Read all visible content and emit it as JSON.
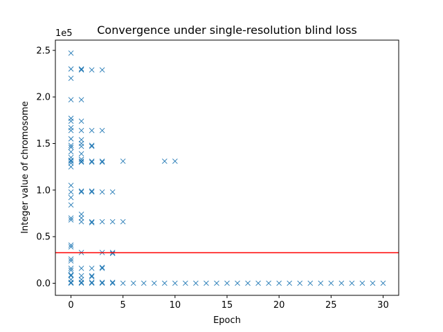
{
  "chart_data": {
    "type": "scatter",
    "title": "Convergence under single-resolution blind loss",
    "xlabel": "Epoch",
    "ylabel": "Integer value of chromosome",
    "offset_label": "1e5",
    "xlim": [
      -1.5,
      31.5
    ],
    "ylim": [
      -13000,
      261000
    ],
    "xticks": [
      0,
      5,
      10,
      15,
      20,
      25,
      30
    ],
    "xtick_labels": [
      "0",
      "5",
      "10",
      "15",
      "20",
      "25",
      "30"
    ],
    "yticks": [
      0,
      50000,
      100000,
      150000,
      200000,
      250000
    ],
    "ytick_labels": [
      "0.0",
      "0.5",
      "1.0",
      "1.5",
      "2.0",
      "2.5"
    ],
    "marker": "x",
    "marker_color": "#1f77b4",
    "hline": {
      "y": 32768,
      "color": "#ff0000"
    },
    "grid": false,
    "points": [
      {
        "x": 0,
        "y": 247000
      },
      {
        "x": 0,
        "y": 230000
      },
      {
        "x": 0,
        "y": 220000
      },
      {
        "x": 0,
        "y": 197000
      },
      {
        "x": 0,
        "y": 177000
      },
      {
        "x": 0,
        "y": 174000
      },
      {
        "x": 0,
        "y": 167000
      },
      {
        "x": 0,
        "y": 164000
      },
      {
        "x": 0,
        "y": 155000
      },
      {
        "x": 0,
        "y": 148000
      },
      {
        "x": 0,
        "y": 146000
      },
      {
        "x": 0,
        "y": 141000
      },
      {
        "x": 0,
        "y": 135000
      },
      {
        "x": 0,
        "y": 132000
      },
      {
        "x": 0,
        "y": 131000
      },
      {
        "x": 0,
        "y": 129000
      },
      {
        "x": 0,
        "y": 125000
      },
      {
        "x": 0,
        "y": 105000
      },
      {
        "x": 0,
        "y": 98000
      },
      {
        "x": 0,
        "y": 92000
      },
      {
        "x": 0,
        "y": 84000
      },
      {
        "x": 0,
        "y": 70000
      },
      {
        "x": 0,
        "y": 68000
      },
      {
        "x": 0,
        "y": 41000
      },
      {
        "x": 0,
        "y": 39000
      },
      {
        "x": 0,
        "y": 26000
      },
      {
        "x": 0,
        "y": 24000
      },
      {
        "x": 0,
        "y": 16000
      },
      {
        "x": 0,
        "y": 14000
      },
      {
        "x": 0,
        "y": 9000
      },
      {
        "x": 0,
        "y": 8000
      },
      {
        "x": 0,
        "y": 4000
      },
      {
        "x": 0,
        "y": 1000
      },
      {
        "x": 0,
        "y": 0
      },
      {
        "x": 1,
        "y": 230000
      },
      {
        "x": 1,
        "y": 229000
      },
      {
        "x": 1,
        "y": 197000
      },
      {
        "x": 1,
        "y": 174000
      },
      {
        "x": 1,
        "y": 164000
      },
      {
        "x": 1,
        "y": 154000
      },
      {
        "x": 1,
        "y": 150000
      },
      {
        "x": 1,
        "y": 147000
      },
      {
        "x": 1,
        "y": 139000
      },
      {
        "x": 1,
        "y": 133000
      },
      {
        "x": 1,
        "y": 131000
      },
      {
        "x": 1,
        "y": 130000
      },
      {
        "x": 1,
        "y": 99000
      },
      {
        "x": 1,
        "y": 98000
      },
      {
        "x": 1,
        "y": 74000
      },
      {
        "x": 1,
        "y": 70000
      },
      {
        "x": 1,
        "y": 66000
      },
      {
        "x": 1,
        "y": 33000
      },
      {
        "x": 1,
        "y": 16000
      },
      {
        "x": 1,
        "y": 8000
      },
      {
        "x": 1,
        "y": 4000
      },
      {
        "x": 1,
        "y": 1000
      },
      {
        "x": 1,
        "y": 0
      },
      {
        "x": 2,
        "y": 229000
      },
      {
        "x": 2,
        "y": 164000
      },
      {
        "x": 2,
        "y": 148000
      },
      {
        "x": 2,
        "y": 147000
      },
      {
        "x": 2,
        "y": 131000
      },
      {
        "x": 2,
        "y": 130000
      },
      {
        "x": 2,
        "y": 99000
      },
      {
        "x": 2,
        "y": 98000
      },
      {
        "x": 2,
        "y": 66000
      },
      {
        "x": 2,
        "y": 65000
      },
      {
        "x": 2,
        "y": 16000
      },
      {
        "x": 2,
        "y": 8000
      },
      {
        "x": 2,
        "y": 7000
      },
      {
        "x": 2,
        "y": 1000
      },
      {
        "x": 2,
        "y": 0
      },
      {
        "x": 3,
        "y": 229000
      },
      {
        "x": 3,
        "y": 164000
      },
      {
        "x": 3,
        "y": 131000
      },
      {
        "x": 3,
        "y": 130000
      },
      {
        "x": 3,
        "y": 98000
      },
      {
        "x": 3,
        "y": 66000
      },
      {
        "x": 3,
        "y": 33000
      },
      {
        "x": 3,
        "y": 17000
      },
      {
        "x": 3,
        "y": 16000
      },
      {
        "x": 3,
        "y": 1000
      },
      {
        "x": 3,
        "y": 0
      },
      {
        "x": 4,
        "y": 98000
      },
      {
        "x": 4,
        "y": 66000
      },
      {
        "x": 4,
        "y": 33000
      },
      {
        "x": 4,
        "y": 32000
      },
      {
        "x": 4,
        "y": 1000
      },
      {
        "x": 4,
        "y": 0
      },
      {
        "x": 5,
        "y": 131000
      },
      {
        "x": 5,
        "y": 66000
      },
      {
        "x": 5,
        "y": 0
      },
      {
        "x": 6,
        "y": 0
      },
      {
        "x": 7,
        "y": 0
      },
      {
        "x": 8,
        "y": 0
      },
      {
        "x": 9,
        "y": 131000
      },
      {
        "x": 9,
        "y": 0
      },
      {
        "x": 10,
        "y": 131000
      },
      {
        "x": 10,
        "y": 0
      },
      {
        "x": 11,
        "y": 0
      },
      {
        "x": 12,
        "y": 0
      },
      {
        "x": 13,
        "y": 0
      },
      {
        "x": 14,
        "y": 0
      },
      {
        "x": 15,
        "y": 0
      },
      {
        "x": 16,
        "y": 0
      },
      {
        "x": 17,
        "y": 0
      },
      {
        "x": 18,
        "y": 0
      },
      {
        "x": 19,
        "y": 0
      },
      {
        "x": 20,
        "y": 0
      },
      {
        "x": 21,
        "y": 0
      },
      {
        "x": 22,
        "y": 0
      },
      {
        "x": 23,
        "y": 0
      },
      {
        "x": 24,
        "y": 0
      },
      {
        "x": 25,
        "y": 0
      },
      {
        "x": 26,
        "y": 0
      },
      {
        "x": 27,
        "y": 0
      },
      {
        "x": 28,
        "y": 0
      },
      {
        "x": 29,
        "y": 0
      },
      {
        "x": 30,
        "y": 0
      }
    ]
  }
}
